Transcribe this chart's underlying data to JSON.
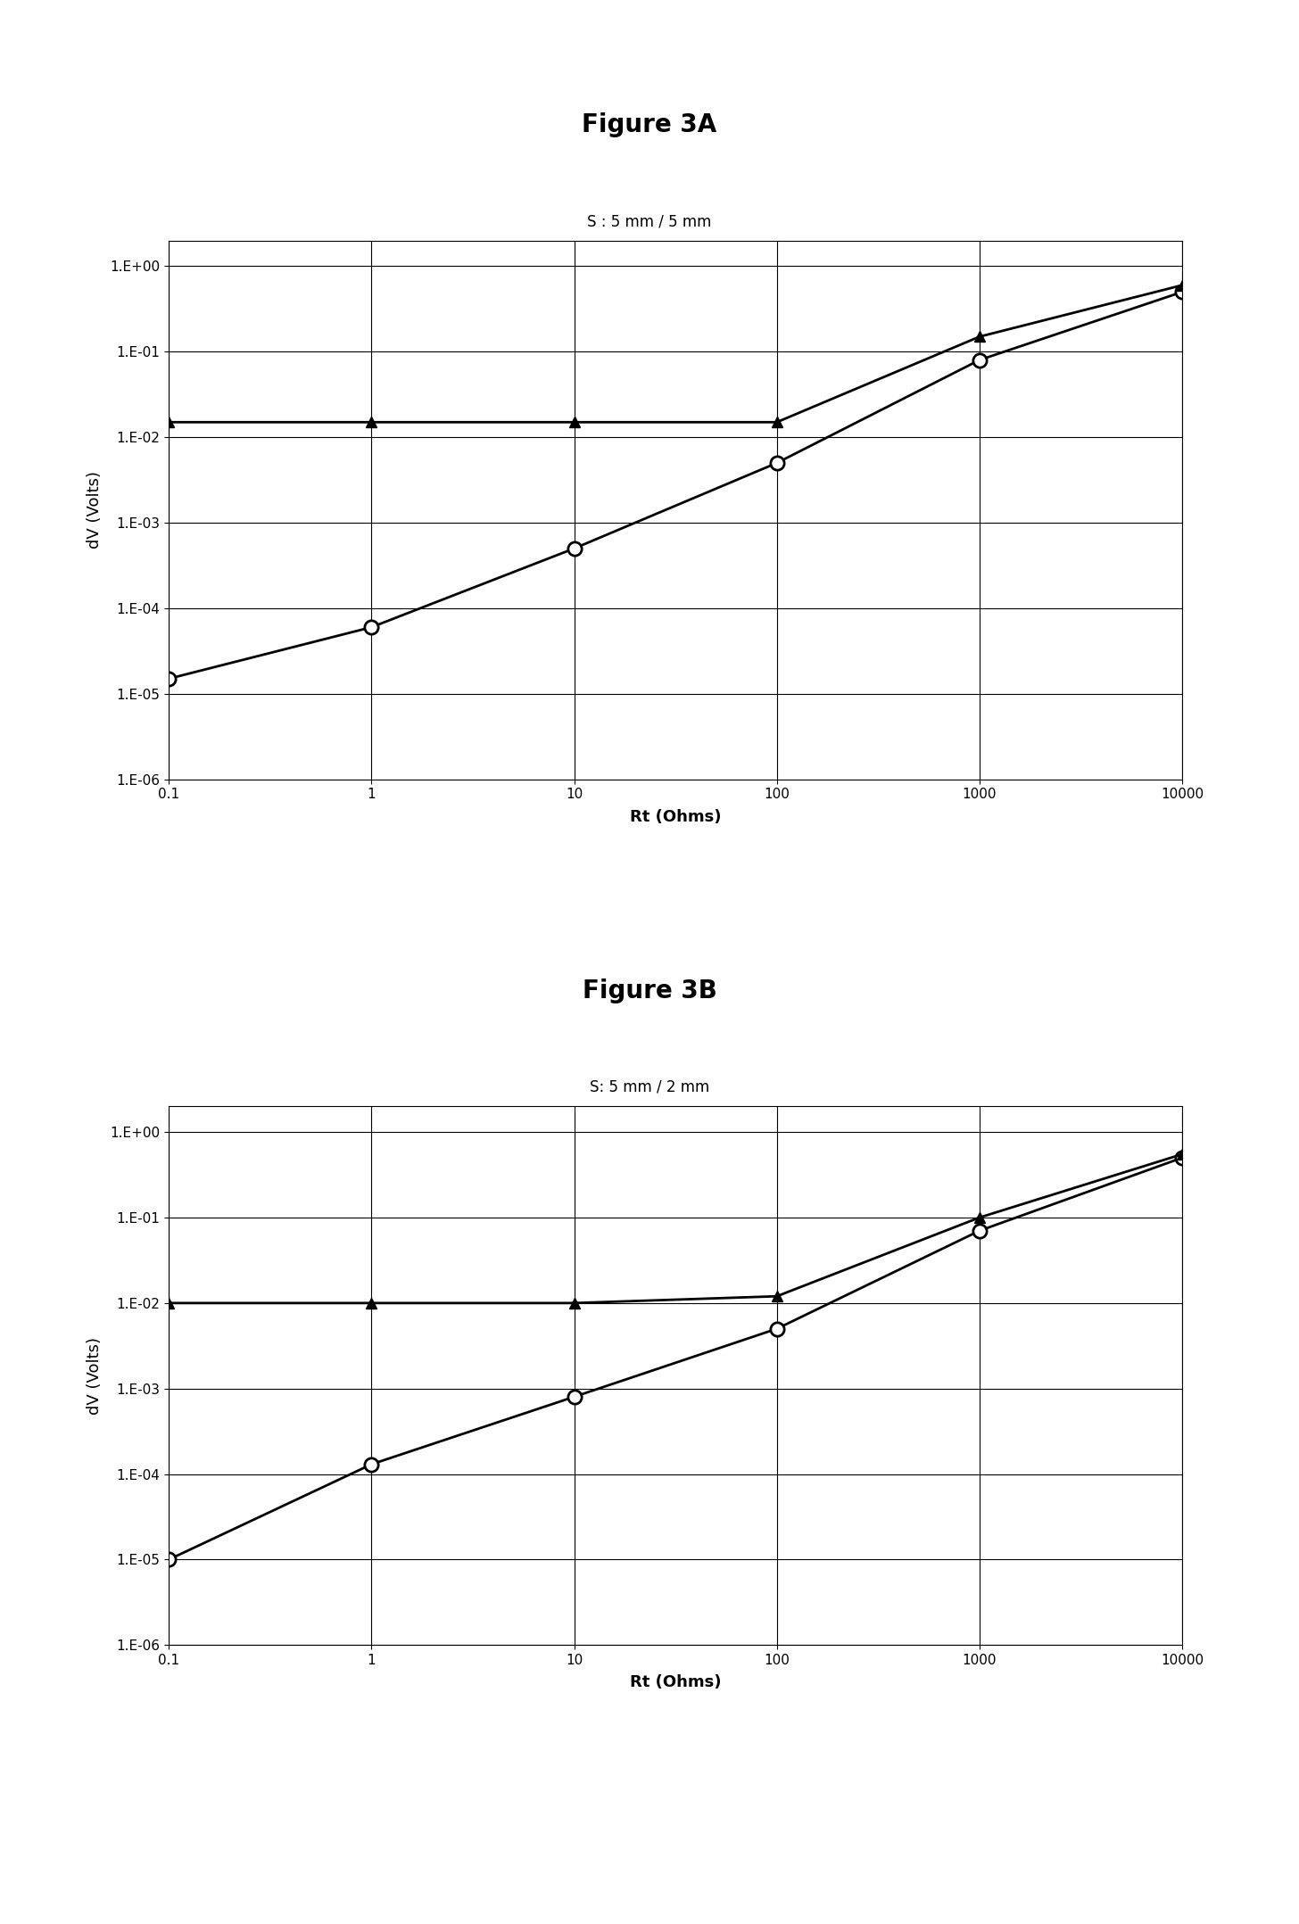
{
  "fig_title_A": "Figure 3A",
  "fig_title_B": "Figure 3B",
  "subtitle_A": "S : 5 mm / 5 mm",
  "subtitle_B": "S: 5 mm / 2 mm",
  "xlabel": "Rt (Ohms)",
  "ylabel": "dV (Volts)",
  "x_values": [
    0.1,
    1,
    10,
    100,
    1000,
    10000
  ],
  "chartA_circle_line": [
    1.5e-05,
    6e-05,
    0.0005,
    0.005,
    0.08,
    0.5
  ],
  "chartA_triangle_line": [
    0.015,
    0.015,
    0.015,
    0.015,
    0.15,
    0.6
  ],
  "chartB_circle_line": [
    1e-05,
    0.00013,
    0.0008,
    0.005,
    0.07,
    0.5
  ],
  "chartB_triangle_line": [
    0.01,
    0.01,
    0.01,
    0.012,
    0.1,
    0.55
  ],
  "xlim": [
    0.1,
    10000
  ],
  "ylim": [
    1e-06,
    2.0
  ],
  "yticks": [
    1e-06,
    1e-05,
    0.0001,
    0.001,
    0.01,
    0.1,
    1.0
  ],
  "ylabels": [
    "1.E-06",
    "1.E-05",
    "1.E-04",
    "1.E-03",
    "1.E-02",
    "1.E-01",
    "1.E+00"
  ],
  "xticks": [
    0.1,
    1,
    10,
    100,
    1000,
    10000
  ],
  "xlabels": [
    "0.1",
    "1",
    "10",
    "100",
    "1000",
    "10000"
  ],
  "background_color": "#ffffff",
  "fig_title_fontsize": 20,
  "subtitle_fontsize": 12,
  "axis_label_fontsize": 13,
  "tick_fontsize": 11,
  "linewidth": 2.0,
  "marker_circle_size": 11,
  "marker_triangle_size": 9
}
